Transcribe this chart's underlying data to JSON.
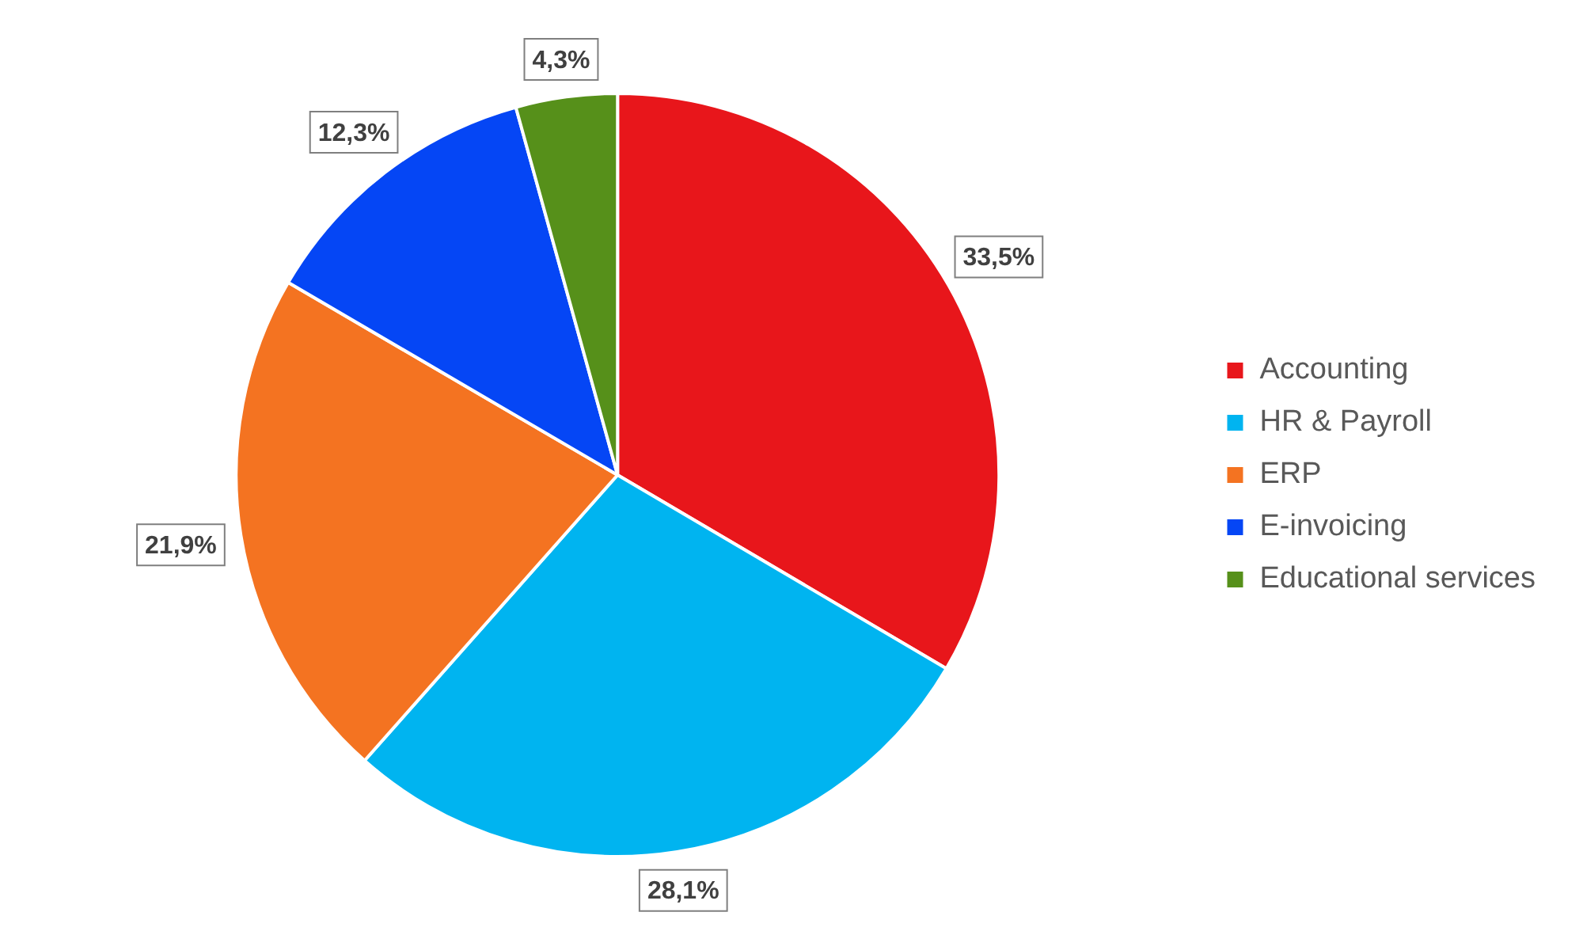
{
  "chart_data": {
    "type": "pie",
    "categories": [
      "Accounting",
      "HR & Payroll",
      "ERP",
      "E-invoicing",
      "Educational services"
    ],
    "values": [
      33.5,
      28.1,
      21.9,
      12.3,
      4.3
    ],
    "colors": [
      "#e8161b",
      "#00b4f0",
      "#f47321",
      "#0546f5",
      "#56901a"
    ],
    "value_labels": [
      "33,5%",
      "28,1%",
      "21,9%",
      "12,3%",
      "4,3%"
    ],
    "legend": "right"
  }
}
